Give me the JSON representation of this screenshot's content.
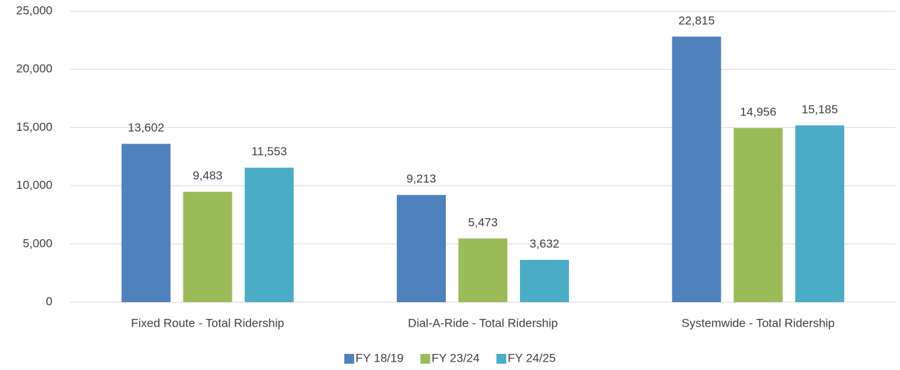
{
  "chart_data": {
    "type": "bar",
    "categories": [
      "Fixed Route - Total Ridership",
      "Dial-A-Ride - Total Ridership",
      "Systemwide - Total Ridership"
    ],
    "series": [
      {
        "name": "FY 18/19",
        "color": "#4f81bd",
        "values": [
          13602,
          9213,
          22815
        ],
        "value_labels": [
          "13,602",
          "9,213",
          "22,815"
        ]
      },
      {
        "name": "FY 23/24",
        "color": "#9bbb59",
        "values": [
          9483,
          5473,
          14956
        ],
        "value_labels": [
          "9,483",
          "5,473",
          "14,956"
        ]
      },
      {
        "name": "FY 24/25",
        "color": "#4bacc6",
        "values": [
          11553,
          3632,
          15185
        ],
        "value_labels": [
          "11,553",
          "3,632",
          "15,185"
        ]
      }
    ],
    "ylim": [
      0,
      25000
    ],
    "yticks": [
      0,
      {
        "value": 5000,
        "label": "5,000"
      },
      {
        "value": 10000,
        "label": "10,000"
      },
      {
        "value": 15000,
        "label": "15,000"
      },
      {
        "value": 20000,
        "label": "20,000"
      },
      {
        "value": 25000,
        "label": "25,000"
      }
    ],
    "grid": true,
    "legend": "bottom"
  }
}
